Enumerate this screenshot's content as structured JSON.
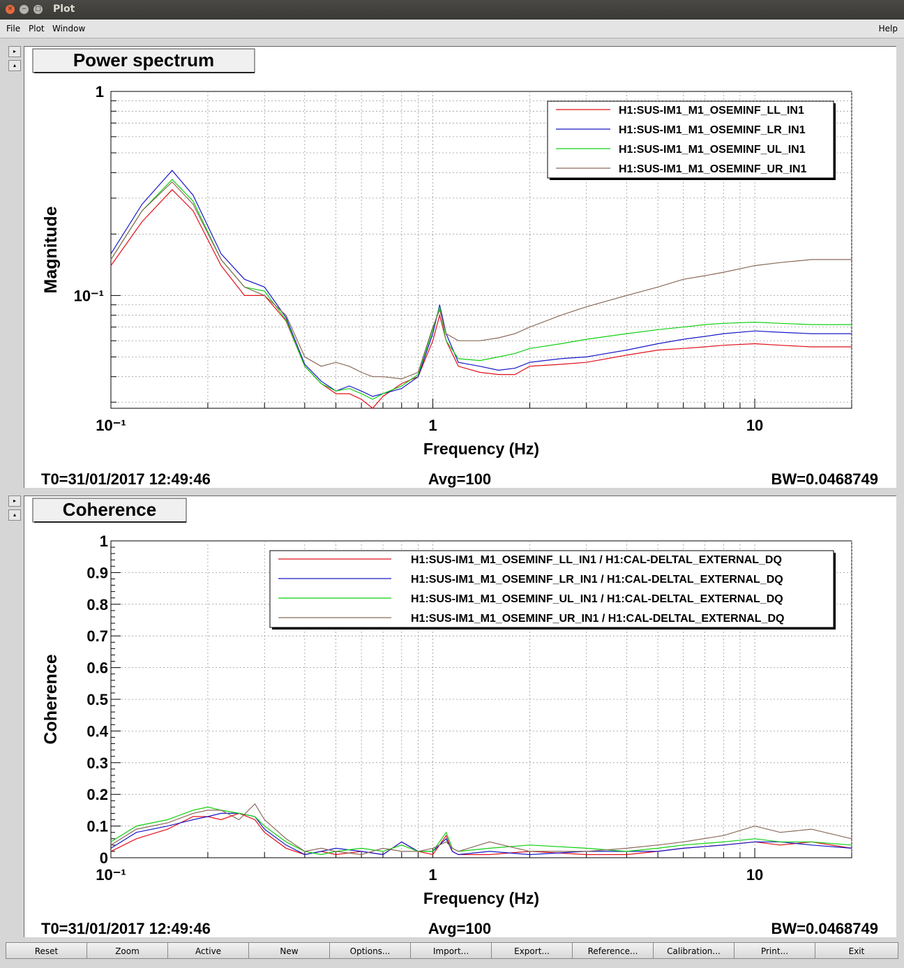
{
  "window": {
    "title": "Plot"
  },
  "menu": {
    "file": "File",
    "plot": "Plot",
    "window": "Window",
    "help": "Help"
  },
  "colors": {
    "LL": "#e0101a",
    "LR": "#1818c8",
    "UL": "#10d010",
    "UR": "#8a6a5a"
  },
  "panels": [
    {
      "tab_title": "Power spectrum",
      "footer": {
        "t0": "T0=31/01/2017 12:49:46",
        "avg": "Avg=100",
        "bw": "BW=0.0468749"
      },
      "chart_data": {
        "type": "line",
        "xlabel": "Frequency (Hz)",
        "ylabel": "Magnitude",
        "xscale": "log",
        "yscale": "log",
        "xlim": [
          0.1,
          20
        ],
        "ylim": [
          0.028,
          1
        ],
        "x_tick_labels": [
          "10⁻¹",
          "1",
          "10"
        ],
        "y_tick_labels": [
          "1",
          "10⁻¹"
        ],
        "grid": true,
        "legend_placement": "top-right",
        "series": [
          {
            "name": "H1:SUS-IM1_M1_OSEMINF_LL_IN1",
            "color": "LL",
            "x": [
              0.1,
              0.125,
              0.155,
              0.18,
              0.22,
              0.26,
              0.3,
              0.35,
              0.4,
              0.45,
              0.5,
              0.55,
              0.6,
              0.65,
              0.7,
              0.8,
              0.9,
              1.0,
              1.05,
              1.1,
              1.2,
              1.4,
              1.6,
              1.8,
              2.0,
              2.5,
              3,
              4,
              5,
              6,
              7,
              8,
              10,
              12,
              15,
              20
            ],
            "y": [
              0.14,
              0.23,
              0.33,
              0.26,
              0.14,
              0.1,
              0.1,
              0.075,
              0.045,
              0.037,
              0.033,
              0.033,
              0.031,
              0.028,
              0.032,
              0.037,
              0.04,
              0.06,
              0.08,
              0.06,
              0.045,
              0.042,
              0.041,
              0.041,
              0.045,
              0.046,
              0.047,
              0.051,
              0.054,
              0.055,
              0.056,
              0.057,
              0.058,
              0.057,
              0.056,
              0.056
            ]
          },
          {
            "name": "H1:SUS-IM1_M1_OSEMINF_LR_IN1",
            "color": "LR",
            "x": [
              0.1,
              0.125,
              0.155,
              0.18,
              0.22,
              0.26,
              0.3,
              0.35,
              0.4,
              0.45,
              0.5,
              0.55,
              0.6,
              0.65,
              0.7,
              0.8,
              0.9,
              1.0,
              1.05,
              1.1,
              1.2,
              1.4,
              1.6,
              1.8,
              2.0,
              2.5,
              3,
              4,
              5,
              6,
              7,
              8,
              10,
              12,
              15,
              20
            ],
            "y": [
              0.16,
              0.28,
              0.41,
              0.31,
              0.16,
              0.12,
              0.11,
              0.078,
              0.046,
              0.038,
              0.034,
              0.036,
              0.034,
              0.032,
              0.033,
              0.035,
              0.04,
              0.065,
              0.09,
              0.065,
              0.047,
              0.045,
              0.043,
              0.044,
              0.047,
              0.049,
              0.05,
              0.054,
              0.058,
              0.061,
              0.063,
              0.065,
              0.067,
              0.066,
              0.065,
              0.065
            ]
          },
          {
            "name": "H1:SUS-IM1_M1_OSEMINF_UL_IN1",
            "color": "UL",
            "x": [
              0.1,
              0.125,
              0.155,
              0.18,
              0.22,
              0.26,
              0.3,
              0.35,
              0.4,
              0.45,
              0.5,
              0.55,
              0.6,
              0.65,
              0.7,
              0.8,
              0.9,
              1.0,
              1.05,
              1.1,
              1.2,
              1.4,
              1.6,
              1.8,
              2.0,
              2.5,
              3,
              4,
              5,
              6,
              7,
              8,
              10,
              12,
              15,
              20
            ],
            "y": [
              0.15,
              0.26,
              0.37,
              0.29,
              0.15,
              0.11,
              0.105,
              0.076,
              0.045,
              0.037,
              0.034,
              0.035,
              0.033,
              0.031,
              0.033,
              0.036,
              0.041,
              0.068,
              0.088,
              0.06,
              0.049,
              0.048,
              0.05,
              0.052,
              0.055,
              0.058,
              0.061,
              0.065,
              0.068,
              0.07,
              0.072,
              0.073,
              0.074,
              0.073,
              0.072,
              0.072
            ]
          },
          {
            "name": "H1:SUS-IM1_M1_OSEMINF_UR_IN1",
            "color": "UR",
            "x": [
              0.1,
              0.125,
              0.155,
              0.18,
              0.22,
              0.26,
              0.3,
              0.35,
              0.4,
              0.45,
              0.5,
              0.55,
              0.6,
              0.65,
              0.7,
              0.8,
              0.9,
              1.0,
              1.05,
              1.1,
              1.2,
              1.4,
              1.6,
              1.8,
              2.0,
              2.5,
              3,
              4,
              5,
              6,
              7,
              8,
              10,
              12,
              15,
              20
            ],
            "y": [
              0.15,
              0.26,
              0.36,
              0.28,
              0.15,
              0.11,
              0.1,
              0.08,
              0.05,
              0.045,
              0.047,
              0.045,
              0.042,
              0.04,
              0.04,
              0.039,
              0.042,
              0.07,
              0.085,
              0.065,
              0.06,
              0.06,
              0.062,
              0.065,
              0.07,
              0.08,
              0.088,
              0.1,
              0.11,
              0.12,
              0.125,
              0.13,
              0.14,
              0.145,
              0.15,
              0.15
            ]
          }
        ]
      }
    },
    {
      "tab_title": "Coherence",
      "footer": {
        "t0": "T0=31/01/2017 12:49:46",
        "avg": "Avg=100",
        "bw": "BW=0.0468749"
      },
      "chart_data": {
        "type": "line",
        "xlabel": "Frequency (Hz)",
        "ylabel": "Coherence",
        "xscale": "log",
        "yscale": "linear",
        "xlim": [
          0.1,
          20
        ],
        "ylim": [
          0,
          1
        ],
        "x_tick_labels": [
          "10⁻¹",
          "1",
          "10"
        ],
        "y_tick_labels": [
          "0",
          "0.1",
          "0.2",
          "0.3",
          "0.4",
          "0.5",
          "0.6",
          "0.7",
          "0.8",
          "0.9",
          "1"
        ],
        "grid": true,
        "legend_placement": "top-right",
        "series": [
          {
            "name": "H1:SUS-IM1_M1_OSEMINF_LL_IN1 / H1:CAL-DELTAL_EXTERNAL_DQ",
            "color": "LL",
            "x": [
              0.1,
              0.12,
              0.15,
              0.18,
              0.2,
              0.22,
              0.25,
              0.28,
              0.3,
              0.35,
              0.4,
              0.45,
              0.5,
              0.6,
              0.7,
              0.8,
              0.9,
              1.0,
              1.1,
              1.15,
              1.2,
              1.5,
              2,
              3,
              4,
              5,
              6,
              8,
              10,
              12,
              15,
              20
            ],
            "y": [
              0.02,
              0.06,
              0.09,
              0.13,
              0.13,
              0.12,
              0.14,
              0.12,
              0.08,
              0.03,
              0.01,
              0.02,
              0.01,
              0.02,
              0.01,
              0.05,
              0.02,
              0.01,
              0.07,
              0.02,
              0.01,
              0.01,
              0.02,
              0.01,
              0.01,
              0.02,
              0.03,
              0.04,
              0.05,
              0.04,
              0.05,
              0.03
            ]
          },
          {
            "name": "H1:SUS-IM1_M1_OSEMINF_LR_IN1 / H1:CAL-DELTAL_EXTERNAL_DQ",
            "color": "LR",
            "x": [
              0.1,
              0.12,
              0.15,
              0.18,
              0.2,
              0.22,
              0.25,
              0.28,
              0.3,
              0.35,
              0.4,
              0.45,
              0.5,
              0.6,
              0.7,
              0.8,
              0.9,
              1.0,
              1.1,
              1.15,
              1.2,
              1.5,
              2,
              3,
              4,
              5,
              6,
              8,
              10,
              12,
              15,
              20
            ],
            "y": [
              0.03,
              0.08,
              0.1,
              0.12,
              0.13,
              0.14,
              0.14,
              0.13,
              0.09,
              0.04,
              0.01,
              0.02,
              0.03,
              0.02,
              0.01,
              0.05,
              0.02,
              0.02,
              0.06,
              0.02,
              0.01,
              0.02,
              0.01,
              0.02,
              0.02,
              0.02,
              0.03,
              0.04,
              0.05,
              0.05,
              0.04,
              0.03
            ]
          },
          {
            "name": "H1:SUS-IM1_M1_OSEMINF_UL_IN1 / H1:CAL-DELTAL_EXTERNAL_DQ",
            "color": "UL",
            "x": [
              0.1,
              0.12,
              0.15,
              0.18,
              0.2,
              0.22,
              0.25,
              0.28,
              0.3,
              0.35,
              0.4,
              0.45,
              0.5,
              0.6,
              0.7,
              0.8,
              0.9,
              1.0,
              1.1,
              1.15,
              1.2,
              1.5,
              2,
              3,
              4,
              5,
              6,
              8,
              10,
              12,
              15,
              20
            ],
            "y": [
              0.05,
              0.1,
              0.12,
              0.15,
              0.16,
              0.15,
              0.14,
              0.13,
              0.1,
              0.05,
              0.02,
              0.01,
              0.02,
              0.03,
              0.02,
              0.04,
              0.02,
              0.02,
              0.08,
              0.03,
              0.02,
              0.03,
              0.04,
              0.03,
              0.02,
              0.03,
              0.04,
              0.05,
              0.06,
              0.05,
              0.05,
              0.04
            ]
          },
          {
            "name": "H1:SUS-IM1_M1_OSEMINF_UR_IN1 / H1:CAL-DELTAL_EXTERNAL_DQ",
            "color": "UR",
            "x": [
              0.1,
              0.12,
              0.15,
              0.18,
              0.2,
              0.22,
              0.25,
              0.28,
              0.3,
              0.35,
              0.4,
              0.45,
              0.5,
              0.6,
              0.7,
              0.8,
              0.9,
              1.0,
              1.1,
              1.15,
              1.2,
              1.5,
              2,
              3,
              4,
              5,
              6,
              8,
              10,
              12,
              15,
              20
            ],
            "y": [
              0.04,
              0.09,
              0.11,
              0.14,
              0.15,
              0.15,
              0.12,
              0.17,
              0.12,
              0.06,
              0.02,
              0.03,
              0.02,
              0.01,
              0.03,
              0.02,
              0.02,
              0.03,
              0.05,
              0.03,
              0.02,
              0.05,
              0.02,
              0.02,
              0.03,
              0.04,
              0.05,
              0.07,
              0.1,
              0.08,
              0.09,
              0.06
            ]
          }
        ]
      }
    }
  ],
  "buttons": [
    "Reset",
    "Zoom",
    "Active",
    "New",
    "Options...",
    "Import...",
    "Export...",
    "Reference...",
    "Calibration...",
    "Print...",
    "Exit"
  ]
}
